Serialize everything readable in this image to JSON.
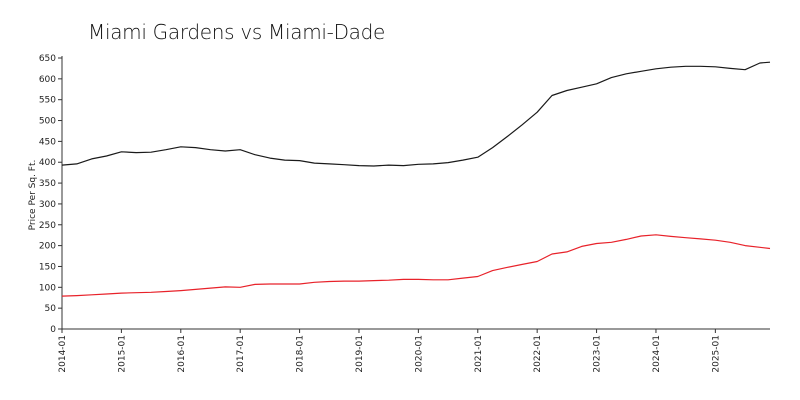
{
  "chart_data": {
    "type": "line",
    "title": "Miami Gardens vs Miami-Dade",
    "xlabel": "",
    "ylabel": "Price Per Sq. Ft.",
    "ylim": [
      0,
      650
    ],
    "yticks": [
      0,
      50,
      100,
      150,
      200,
      250,
      300,
      350,
      400,
      450,
      500,
      550,
      600,
      650
    ],
    "xlim": [
      2014.0,
      2025.92
    ],
    "xticks": [
      {
        "value": 2014,
        "label": "2014-01"
      },
      {
        "value": 2015,
        "label": "2015-01"
      },
      {
        "value": 2016,
        "label": "2016-01"
      },
      {
        "value": 2017,
        "label": "2017-01"
      },
      {
        "value": 2018,
        "label": "2018-01"
      },
      {
        "value": 2019,
        "label": "2019-01"
      },
      {
        "value": 2020,
        "label": "2020-01"
      },
      {
        "value": 2021,
        "label": "2021-01"
      },
      {
        "value": 2022,
        "label": "2022-01"
      },
      {
        "value": 2023,
        "label": "2023-01"
      },
      {
        "value": 2024,
        "label": "2024-01"
      },
      {
        "value": 2025,
        "label": "2025-01"
      }
    ],
    "legend": "none",
    "grid": false,
    "series": [
      {
        "name": "Miami-Dade",
        "color": "#1a1a1a",
        "x": [
          2014.0,
          2014.25,
          2014.5,
          2014.75,
          2015.0,
          2015.25,
          2015.5,
          2015.75,
          2016.0,
          2016.25,
          2016.5,
          2016.75,
          2017.0,
          2017.25,
          2017.5,
          2017.75,
          2018.0,
          2018.25,
          2018.5,
          2018.75,
          2019.0,
          2019.25,
          2019.5,
          2019.75,
          2020.0,
          2020.25,
          2020.5,
          2020.75,
          2021.0,
          2021.25,
          2021.5,
          2021.75,
          2022.0,
          2022.25,
          2022.5,
          2022.75,
          2023.0,
          2023.25,
          2023.5,
          2023.75,
          2024.0,
          2024.25,
          2024.5,
          2024.75,
          2025.0,
          2025.25,
          2025.5,
          2025.75,
          2025.92
        ],
        "y": [
          393,
          396,
          408,
          415,
          425,
          423,
          424,
          430,
          437,
          435,
          430,
          427,
          430,
          418,
          410,
          405,
          404,
          398,
          396,
          394,
          392,
          391,
          393,
          392,
          395,
          396,
          399,
          405,
          412,
          435,
          462,
          490,
          520,
          560,
          572,
          580,
          588,
          603,
          612,
          618,
          624,
          628,
          630,
          630,
          629,
          625,
          622,
          638,
          640
        ]
      },
      {
        "name": "Miami Gardens",
        "color": "#e8222a",
        "x": [
          2014.0,
          2014.25,
          2014.5,
          2014.75,
          2015.0,
          2015.25,
          2015.5,
          2015.75,
          2016.0,
          2016.25,
          2016.5,
          2016.75,
          2017.0,
          2017.25,
          2017.5,
          2017.75,
          2018.0,
          2018.25,
          2018.5,
          2018.75,
          2019.0,
          2019.25,
          2019.5,
          2019.75,
          2020.0,
          2020.25,
          2020.5,
          2020.75,
          2021.0,
          2021.25,
          2021.5,
          2021.75,
          2022.0,
          2022.25,
          2022.5,
          2022.75,
          2023.0,
          2023.25,
          2023.5,
          2023.75,
          2024.0,
          2024.25,
          2024.5,
          2024.75,
          2025.0,
          2025.25,
          2025.5,
          2025.75,
          2025.92
        ],
        "y": [
          79,
          80,
          82,
          84,
          86,
          87,
          88,
          90,
          92,
          95,
          98,
          101,
          100,
          107,
          108,
          108,
          108,
          112,
          114,
          115,
          115,
          116,
          117,
          119,
          119,
          118,
          118,
          122,
          126,
          140,
          148,
          155,
          162,
          180,
          185,
          198,
          205,
          208,
          215,
          223,
          226,
          222,
          219,
          216,
          213,
          208,
          200,
          196,
          193
        ]
      }
    ]
  }
}
